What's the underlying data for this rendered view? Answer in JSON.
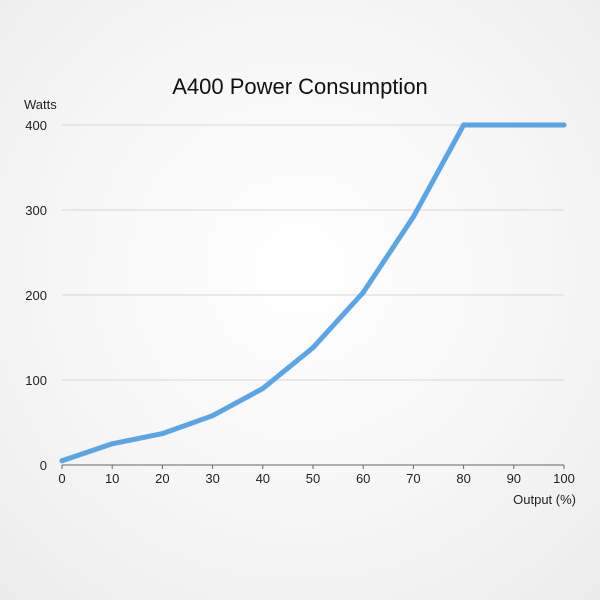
{
  "chart_data": {
    "type": "line",
    "title": "A400 Power Consumption",
    "xlabel": "Output (%)",
    "ylabel": "Watts",
    "xlim": [
      0,
      100
    ],
    "ylim": [
      0,
      400
    ],
    "x_ticks": [
      "0",
      "10",
      "20",
      "30",
      "40",
      "50",
      "60",
      "70",
      "80",
      "90",
      "100"
    ],
    "y_ticks": [
      "0",
      "100",
      "200",
      "300",
      "400"
    ],
    "grid": "horizontal",
    "legend": "none",
    "series": [
      {
        "color": "#5aa5e6",
        "x": [
          0,
          10,
          20,
          30,
          40,
          50,
          60,
          70,
          80,
          90,
          100
        ],
        "y": [
          5,
          25,
          37,
          58,
          90,
          138,
          203,
          292,
          400,
          400,
          400
        ]
      }
    ]
  }
}
